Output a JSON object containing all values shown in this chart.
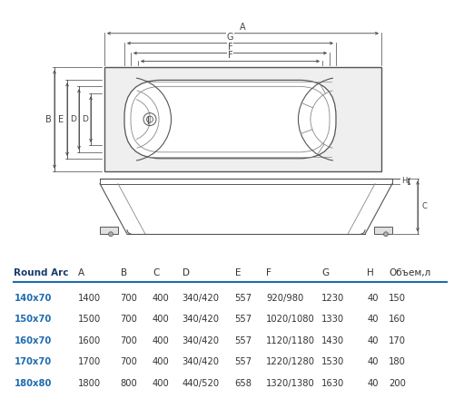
{
  "bg_color": "#ffffff",
  "table_header": [
    "Round Arc",
    "A",
    "B",
    "C",
    "D",
    "E",
    "F",
    "G",
    "H",
    "Объем,л"
  ],
  "table_rows": [
    [
      "140x70",
      "1400",
      "700",
      "400",
      "340/420",
      "557",
      "920/980",
      "1230",
      "40",
      "150"
    ],
    [
      "150x70",
      "1500",
      "700",
      "400",
      "340/420",
      "557",
      "1020/1080",
      "1330",
      "40",
      "160"
    ],
    [
      "160x70",
      "1600",
      "700",
      "400",
      "340/420",
      "557",
      "1120/1180",
      "1430",
      "40",
      "170"
    ],
    [
      "170x70",
      "1700",
      "700",
      "400",
      "340/420",
      "557",
      "1220/1280",
      "1530",
      "40",
      "180"
    ],
    [
      "180x80",
      "1800",
      "800",
      "400",
      "440/520",
      "658",
      "1320/1380",
      "1630",
      "40",
      "200"
    ]
  ],
  "row_label_color": "#1e6bb0",
  "header_color": "#1a3a6b",
  "sep_color": "#1e6bb0",
  "dc": "#555555",
  "lc": "#888888"
}
